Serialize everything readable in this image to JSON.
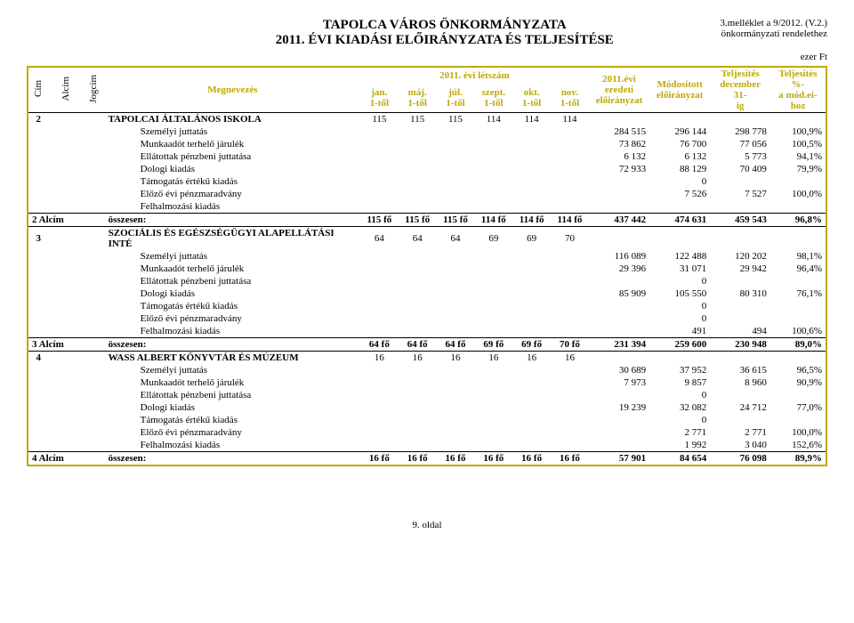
{
  "header": {
    "title_line1": "TAPOLCA VÁROS ÖNKORMÁNYZATA",
    "title_line2": "2011. ÉVI KIADÁSI ELŐIRÁNYZATA ÉS TELJESÍTÉSE",
    "right1": "3.melléklet a 9/2012. (V.2.)",
    "right2": "önkormányzati rendelethez",
    "unit": "ezer Ft"
  },
  "thead": {
    "cim": "Cím",
    "alcim": "Alcím",
    "jogcim": "Jogcím",
    "megnevezes": "Megnevezés",
    "letszam_group": "2011. évi létszám",
    "months": [
      "jan.\n1-től",
      "máj.\n1-től",
      "júl.\n1-től",
      "szept.\n1-től",
      "okt.\n1-től",
      "nov.\n1-től"
    ],
    "eredeti": "2011.évi\neredeti\nelőirányzat",
    "modositott": "Módosított\nelőirányzat",
    "teljesites": "Teljesítés\ndecember 31-\nig",
    "teljpct": "Teljesítés %-\na mód.ei-hoz"
  },
  "rows": [
    {
      "type": "section",
      "cim": "2",
      "label": "TAPOLCAI ÁLTALÁNOS ISKOLA",
      "m": [
        "115",
        "115",
        "115",
        "114",
        "114",
        "114"
      ],
      "v": [
        "",
        "",
        "",
        ""
      ]
    },
    {
      "type": "line",
      "label": "Személyi juttatás",
      "v": [
        "284 515",
        "296 144",
        "298 778",
        "100,9%"
      ]
    },
    {
      "type": "line",
      "label": "Munkaadót terhelő járulék",
      "v": [
        "73 862",
        "76 700",
        "77 056",
        "100,5%"
      ]
    },
    {
      "type": "line",
      "label": "Ellátottak pénzbeni juttatása",
      "v": [
        "6 132",
        "6 132",
        "5 773",
        "94,1%"
      ]
    },
    {
      "type": "line",
      "label": "Dologi kiadás",
      "v": [
        "72 933",
        "88 129",
        "70 409",
        "79,9%"
      ]
    },
    {
      "type": "line",
      "label": "Támogatás értékű kiadás",
      "v": [
        "",
        "0",
        "",
        ""
      ]
    },
    {
      "type": "line",
      "label": "Előző évi pénzmaradvány",
      "v": [
        "",
        "7 526",
        "7 527",
        "100,0%"
      ]
    },
    {
      "type": "line",
      "label": "Felhalmozási kiadás",
      "v": [
        "",
        "",
        "",
        ""
      ]
    },
    {
      "type": "total",
      "alcim": "2 Alcím",
      "label": "összesen:",
      "m": [
        "115 fő",
        "115 fő",
        "115 fő",
        "114 fő",
        "114 fő",
        "114 fő"
      ],
      "v": [
        "437 442",
        "474 631",
        "459 543",
        "96,8%"
      ]
    },
    {
      "type": "section",
      "cim": "3",
      "label": "SZOCIÁLIS ÉS EGÉSZSÉGÜGYI ALAPELLÁTÁSI INTÉ",
      "m": [
        "64",
        "64",
        "64",
        "69",
        "69",
        "70"
      ],
      "v": [
        "",
        "",
        "",
        ""
      ]
    },
    {
      "type": "line",
      "label": "Személyi juttatás",
      "v": [
        "116 089",
        "122 488",
        "120 202",
        "98,1%"
      ]
    },
    {
      "type": "line",
      "label": "Munkaadót terhelő járulék",
      "v": [
        "29 396",
        "31 071",
        "29 942",
        "96,4%"
      ]
    },
    {
      "type": "line",
      "label": "Ellátottak pénzbeni juttatása",
      "v": [
        "",
        "0",
        "",
        ""
      ]
    },
    {
      "type": "line",
      "label": "Dologi kiadás",
      "v": [
        "85 909",
        "105 550",
        "80 310",
        "76,1%"
      ]
    },
    {
      "type": "line",
      "label": "Támogatás értékű kiadás",
      "v": [
        "",
        "0",
        "",
        ""
      ]
    },
    {
      "type": "line",
      "label": "Előző évi pénzmaradvány",
      "v": [
        "",
        "0",
        "",
        ""
      ]
    },
    {
      "type": "line",
      "label": "Felhalmozási kiadás",
      "v": [
        "",
        "491",
        "494",
        "100,6%"
      ]
    },
    {
      "type": "total",
      "alcim": "3 Alcím",
      "label": "összesen:",
      "m": [
        "64 fő",
        "64 fő",
        "64 fő",
        "69 fő",
        "69 fő",
        "70 fő"
      ],
      "v": [
        "231 394",
        "259 600",
        "230 948",
        "89,0%"
      ]
    },
    {
      "type": "section",
      "cim": "4",
      "label": "WASS ALBERT KÖNYVTÁR ÉS MÚZEUM",
      "m": [
        "16",
        "16",
        "16",
        "16",
        "16",
        "16"
      ],
      "v": [
        "",
        "",
        "",
        ""
      ]
    },
    {
      "type": "line",
      "label": "Személyi juttatás",
      "v": [
        "30 689",
        "37 952",
        "36 615",
        "96,5%"
      ]
    },
    {
      "type": "line",
      "label": "Munkaadót terhelő járulék",
      "v": [
        "7 973",
        "9 857",
        "8 960",
        "90,9%"
      ]
    },
    {
      "type": "line",
      "label": "Ellátottak pénzbeni juttatása",
      "v": [
        "",
        "0",
        "",
        ""
      ]
    },
    {
      "type": "line",
      "label": "Dologi kiadás",
      "v": [
        "19 239",
        "32 082",
        "24 712",
        "77,0%"
      ]
    },
    {
      "type": "line",
      "label": "Támogatás értékű kiadás",
      "v": [
        "",
        "0",
        "",
        ""
      ]
    },
    {
      "type": "line",
      "label": "Előző évi pénzmaradvány",
      "v": [
        "",
        "2 771",
        "2 771",
        "100,0%"
      ]
    },
    {
      "type": "line",
      "label": "Felhalmozási kiadás",
      "v": [
        "",
        "1 992",
        "3 040",
        "152,6%"
      ]
    },
    {
      "type": "total",
      "alcim": "4 Alcím",
      "label": "összesen:",
      "m": [
        "16 fő",
        "16 fő",
        "16 fő",
        "16 fő",
        "16 fő",
        "16 fő"
      ],
      "v": [
        "57 901",
        "84 654",
        "76 098",
        "89,9%"
      ]
    }
  ],
  "footer": "9. oldal",
  "style": {
    "border_color": "#bfa900",
    "head_accent": "#bfa900",
    "text_color": "#000000",
    "background": "#ffffff",
    "title_fontsize": 15,
    "body_fontsize": 11
  }
}
